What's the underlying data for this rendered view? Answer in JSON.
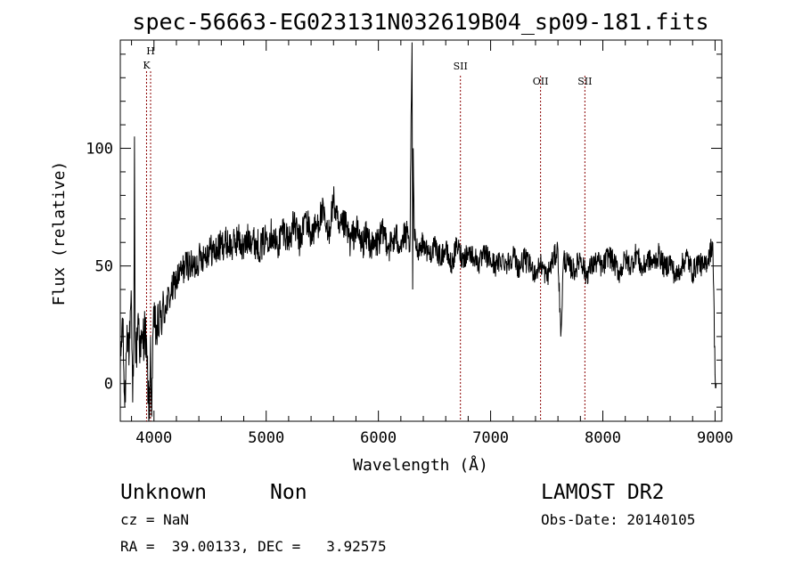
{
  "chart_data": {
    "type": "line",
    "title": "spec-56663-EG023131N032619B04_sp09-181.fits",
    "xlabel": "Wavelength (Å)",
    "ylabel": "Flux (relative)",
    "xlim": [
      3700,
      9060
    ],
    "ylim": [
      -16,
      146
    ],
    "x_ticks": [
      {
        "value": 4000,
        "label": "4000"
      },
      {
        "value": 5000,
        "label": "5000"
      },
      {
        "value": 6000,
        "label": "6000"
      },
      {
        "value": 7000,
        "label": "7000"
      },
      {
        "value": 8000,
        "label": "8000"
      },
      {
        "value": 9000,
        "label": "9000"
      }
    ],
    "y_ticks": [
      {
        "value": 0,
        "label": "0"
      },
      {
        "value": 50,
        "label": "50"
      },
      {
        "value": 100,
        "label": "100"
      }
    ],
    "grid": false,
    "legend": "none",
    "series": [
      {
        "color": "#000000",
        "x": [
          3700,
          3720,
          3740,
          3760,
          3780,
          3800,
          3810,
          3820,
          3826,
          3832,
          3840,
          3860,
          3880,
          3900,
          3920,
          3940,
          3960,
          3970,
          3980,
          3990,
          4000,
          4030,
          4060,
          4100,
          4150,
          4200,
          4250,
          4300,
          4350,
          4400,
          4450,
          4500,
          4550,
          4600,
          4650,
          4700,
          4750,
          4800,
          4850,
          4900,
          4950,
          5000,
          5050,
          5100,
          5150,
          5200,
          5250,
          5300,
          5350,
          5400,
          5450,
          5500,
          5550,
          5600,
          5650,
          5700,
          5750,
          5800,
          5850,
          5900,
          5950,
          6000,
          6050,
          6100,
          6150,
          6200,
          6250,
          6280,
          6300,
          6305,
          6310,
          6320,
          6350,
          6400,
          6450,
          6500,
          6550,
          6600,
          6650,
          6700,
          6750,
          6800,
          6850,
          6900,
          6950,
          7000,
          7050,
          7100,
          7150,
          7200,
          7250,
          7300,
          7350,
          7400,
          7450,
          7500,
          7550,
          7600,
          7625,
          7650,
          7700,
          7750,
          7800,
          7850,
          7900,
          7950,
          8000,
          8050,
          8100,
          8150,
          8200,
          8250,
          8300,
          8350,
          8400,
          8450,
          8500,
          8550,
          8600,
          8650,
          8700,
          8750,
          8800,
          8850,
          8900,
          8950,
          8980,
          9000,
          9010
        ],
        "y": [
          5,
          28,
          -10,
          25,
          14,
          32,
          -8,
          18,
          105,
          22,
          10,
          30,
          12,
          18,
          24,
          6,
          -15,
          20,
          -14,
          20,
          24,
          22,
          28,
          33,
          38,
          44,
          48,
          51,
          49,
          53,
          55,
          57,
          56,
          59,
          60,
          58,
          62,
          57,
          63,
          60,
          58,
          62,
          64,
          58,
          66,
          61,
          68,
          60,
          71,
          63,
          67,
          73,
          62,
          78,
          64,
          68,
          60,
          66,
          59,
          63,
          57,
          61,
          64,
          58,
          62,
          60,
          63,
          56,
          145,
          40,
          100,
          62,
          57,
          60,
          55,
          58,
          54,
          57,
          50,
          59,
          53,
          56,
          54,
          51,
          55,
          52,
          50,
          53,
          51,
          55,
          49,
          53,
          50,
          47,
          51,
          45,
          52,
          57,
          20,
          53,
          50,
          48,
          54,
          46,
          50,
          52,
          49,
          55,
          51,
          47,
          53,
          50,
          56,
          48,
          53,
          51,
          55,
          49,
          52,
          45,
          50,
          54,
          47,
          52,
          49,
          55,
          60,
          4,
          0
        ]
      }
    ],
    "annotations": [
      {
        "label": "H",
        "x": 3970,
        "line": true
      },
      {
        "label": "K",
        "x": 3934,
        "line": true
      },
      {
        "label": "SII",
        "x": 6731,
        "line": true
      },
      {
        "label": "OII",
        "x": 7445,
        "line": true
      },
      {
        "label": "SII",
        "x": 7840,
        "line": true
      }
    ]
  },
  "footer": {
    "class_name": "Unknown",
    "subclass": "Non",
    "survey": "LAMOST DR2",
    "cz": "cz = NaN",
    "obs_date": "Obs-Date: 20140105",
    "coords": "RA =  39.00133, DEC =   3.92575"
  }
}
